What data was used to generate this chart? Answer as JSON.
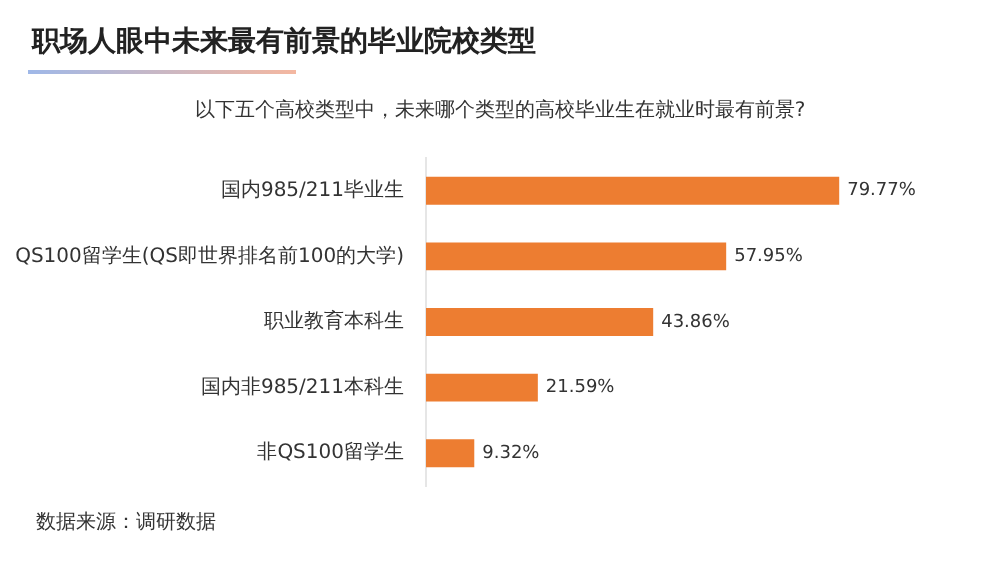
{
  "chart_data": {
    "type": "bar",
    "orientation": "horizontal",
    "title": "职场人眼中未来最有前景的毕业院校类型",
    "subtitle": "以下五个高校类型中，未来哪个类型的高校毕业生在就业时最有前景?",
    "categories": [
      "国内985/211毕业生",
      "QS100留学生(QS即世界排名前100的大学)",
      "职业教育本科生",
      "国内非985/211本科生",
      "非QS100留学生"
    ],
    "values": [
      79.77,
      57.95,
      43.86,
      21.59,
      9.32
    ],
    "value_labels": [
      "79.77%",
      "57.95%",
      "43.86%",
      "21.59%",
      "9.32%"
    ],
    "color": "#ed7d31",
    "legend": false,
    "annotations": [
      "数据来源：调研数据"
    ]
  }
}
